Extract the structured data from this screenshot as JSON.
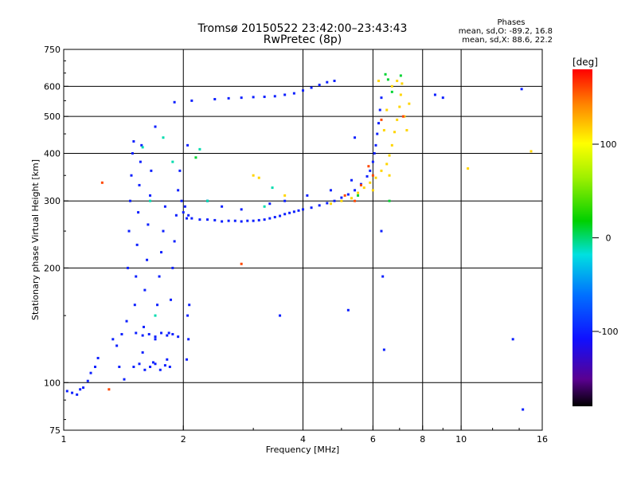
{
  "header": {
    "title": "Tromsø 20150522 23:42:00–23:43:43",
    "subtitle": "RwPretec (8p)",
    "phase_title": "Phases",
    "phase_line_o": "mean, sd,O: -89.2, 16.8",
    "phase_line_x": "mean, sd,X: 88.6, 22.2"
  },
  "chart_data": {
    "type": "scatter",
    "xlabel": "Frequency [MHz]",
    "ylabel": "Stationary phase Virtual Height [km]",
    "x_scale": "log",
    "y_scale": "log",
    "xlim": [
      1,
      16
    ],
    "ylim": [
      75,
      750
    ],
    "x_ticks": [
      1,
      2,
      4,
      6,
      8,
      10,
      16
    ],
    "x_tick_labels": [
      "1",
      "2",
      "4",
      "6",
      "8",
      "10",
      "16"
    ],
    "x_gridlines": [
      2,
      4,
      6,
      8,
      10
    ],
    "y_ticks": [
      75,
      100,
      200,
      300,
      400,
      500,
      600,
      750
    ],
    "y_tick_labels": [
      "75",
      "100",
      "200",
      "300",
      "400",
      "500",
      "600",
      "750"
    ],
    "y_gridlines": [
      100,
      200,
      300,
      400,
      500,
      600
    ],
    "grid": true,
    "colorbar": {
      "label": "[deg]",
      "range": [
        -180,
        180
      ],
      "ticks": [
        100,
        0,
        -100
      ],
      "tick_labels": [
        "100",
        "0",
        "-100"
      ]
    },
    "series": [
      {
        "color_value": -100,
        "points": [
          [
            1.02,
            95
          ],
          [
            1.05,
            94
          ],
          [
            1.08,
            93
          ],
          [
            1.1,
            96
          ],
          [
            1.12,
            97
          ],
          [
            1.15,
            101
          ],
          [
            1.17,
            106
          ],
          [
            1.2,
            110
          ],
          [
            1.22,
            116
          ],
          [
            1.33,
            130
          ],
          [
            1.36,
            125
          ],
          [
            1.38,
            110
          ],
          [
            1.4,
            134
          ],
          [
            1.42,
            102
          ],
          [
            1.44,
            145
          ],
          [
            1.45,
            200
          ],
          [
            1.46,
            250
          ],
          [
            1.47,
            300
          ],
          [
            1.48,
            350
          ],
          [
            1.49,
            400
          ],
          [
            1.5,
            430
          ],
          [
            1.51,
            160
          ],
          [
            1.52,
            190
          ],
          [
            1.53,
            230
          ],
          [
            1.54,
            280
          ],
          [
            1.55,
            330
          ],
          [
            1.56,
            380
          ],
          [
            1.57,
            420
          ],
          [
            1.58,
            120
          ],
          [
            1.59,
            140
          ],
          [
            1.6,
            175
          ],
          [
            1.62,
            210
          ],
          [
            1.63,
            260
          ],
          [
            1.65,
            310
          ],
          [
            1.66,
            360
          ],
          [
            1.68,
            113
          ],
          [
            1.7,
            130
          ],
          [
            1.72,
            160
          ],
          [
            1.74,
            190
          ],
          [
            1.76,
            220
          ],
          [
            1.78,
            250
          ],
          [
            1.8,
            290
          ],
          [
            1.82,
            115
          ],
          [
            1.84,
            135
          ],
          [
            1.86,
            165
          ],
          [
            1.88,
            200
          ],
          [
            1.9,
            235
          ],
          [
            1.92,
            275
          ],
          [
            1.94,
            320
          ],
          [
            1.96,
            360
          ],
          [
            1.98,
            300
          ],
          [
            2.0,
            280
          ],
          [
            2.02,
            290
          ],
          [
            2.04,
            270
          ],
          [
            2.06,
            275
          ],
          [
            1.5,
            110
          ],
          [
            1.55,
            112
          ],
          [
            1.6,
            108
          ],
          [
            1.65,
            110
          ],
          [
            1.7,
            112
          ],
          [
            1.75,
            108
          ],
          [
            1.8,
            111
          ],
          [
            1.85,
            110
          ],
          [
            1.52,
            135
          ],
          [
            1.58,
            133
          ],
          [
            1.64,
            134
          ],
          [
            1.7,
            132
          ],
          [
            1.76,
            135
          ],
          [
            1.82,
            133
          ],
          [
            1.88,
            134
          ],
          [
            1.94,
            132
          ],
          [
            2.04,
            115
          ],
          [
            2.06,
            130
          ],
          [
            2.05,
            150
          ],
          [
            2.07,
            160
          ],
          [
            2.1,
            270
          ],
          [
            2.2,
            268
          ],
          [
            2.3,
            268
          ],
          [
            2.4,
            267
          ],
          [
            2.5,
            265
          ],
          [
            2.6,
            266
          ],
          [
            2.7,
            266
          ],
          [
            2.8,
            265
          ],
          [
            2.9,
            266
          ],
          [
            3.0,
            266
          ],
          [
            3.1,
            267
          ],
          [
            3.2,
            268
          ],
          [
            3.3,
            270
          ],
          [
            3.4,
            272
          ],
          [
            3.5,
            274
          ],
          [
            3.6,
            277
          ],
          [
            3.7,
            279
          ],
          [
            3.8,
            281
          ],
          [
            3.9,
            283
          ],
          [
            4.0,
            285
          ],
          [
            4.2,
            288
          ],
          [
            4.4,
            292
          ],
          [
            4.6,
            296
          ],
          [
            4.8,
            300
          ],
          [
            5.0,
            306
          ],
          [
            5.2,
            312
          ],
          [
            5.4,
            320
          ],
          [
            5.6,
            332
          ],
          [
            5.8,
            348
          ],
          [
            5.9,
            360
          ],
          [
            6.0,
            380
          ],
          [
            6.05,
            400
          ],
          [
            6.1,
            420
          ],
          [
            6.15,
            450
          ],
          [
            6.2,
            480
          ],
          [
            6.25,
            520
          ],
          [
            6.3,
            560
          ],
          [
            2.3,
            300
          ],
          [
            2.5,
            290
          ],
          [
            2.8,
            285
          ],
          [
            3.3,
            295
          ],
          [
            3.6,
            300
          ],
          [
            4.1,
            310
          ],
          [
            4.7,
            320
          ],
          [
            5.3,
            340
          ],
          [
            2.4,
            555
          ],
          [
            2.6,
            558
          ],
          [
            2.8,
            560
          ],
          [
            3.0,
            562
          ],
          [
            3.2,
            563
          ],
          [
            3.4,
            565
          ],
          [
            3.6,
            570
          ],
          [
            3.8,
            575
          ],
          [
            4.0,
            585
          ],
          [
            4.2,
            595
          ],
          [
            4.4,
            605
          ],
          [
            4.6,
            615
          ],
          [
            4.8,
            620
          ],
          [
            1.7,
            470
          ],
          [
            1.9,
            545
          ],
          [
            2.1,
            550
          ],
          [
            2.05,
            420
          ],
          [
            6.3,
            250
          ],
          [
            6.35,
            190
          ],
          [
            6.4,
            122
          ],
          [
            8.6,
            570
          ],
          [
            9.0,
            560
          ],
          [
            13.5,
            130
          ],
          [
            14.3,
            85
          ],
          [
            14.2,
            590
          ],
          [
            3.5,
            150
          ],
          [
            5.2,
            155
          ],
          [
            5.4,
            440
          ]
        ]
      },
      {
        "color_value": 115,
        "points": [
          [
            4.7,
            295
          ],
          [
            5.0,
            300
          ],
          [
            5.3,
            305
          ],
          [
            5.5,
            315
          ],
          [
            5.7,
            325
          ],
          [
            5.9,
            335
          ],
          [
            6.1,
            345
          ],
          [
            6.3,
            360
          ],
          [
            6.5,
            375
          ],
          [
            6.6,
            395
          ],
          [
            6.7,
            420
          ],
          [
            6.8,
            455
          ],
          [
            6.9,
            490
          ],
          [
            7.0,
            530
          ],
          [
            7.05,
            570
          ],
          [
            7.1,
            610
          ],
          [
            6.7,
            600
          ],
          [
            6.5,
            520
          ],
          [
            6.4,
            460
          ],
          [
            6.6,
            350
          ],
          [
            6.9,
            620
          ],
          [
            7.2,
            500
          ],
          [
            7.3,
            460
          ],
          [
            7.4,
            540
          ],
          [
            3.0,
            350
          ],
          [
            3.1,
            345
          ],
          [
            3.6,
            310
          ],
          [
            10.4,
            365
          ],
          [
            15.0,
            405
          ],
          [
            6.2,
            620
          ],
          [
            6.0,
            320
          ]
        ]
      },
      {
        "color_value": 10,
        "points": [
          [
            6.45,
            645
          ],
          [
            6.55,
            625
          ],
          [
            6.7,
            580
          ],
          [
            7.05,
            640
          ],
          [
            6.6,
            300
          ],
          [
            5.5,
            310
          ],
          [
            2.15,
            390
          ]
        ]
      },
      {
        "color_value": 160,
        "points": [
          [
            5.1,
            310
          ],
          [
            5.4,
            300
          ],
          [
            5.6,
            330
          ],
          [
            5.85,
            370
          ],
          [
            6.0,
            350
          ],
          [
            6.3,
            490
          ],
          [
            1.25,
            335
          ],
          [
            2.8,
            205
          ],
          [
            1.3,
            96
          ],
          [
            7.15,
            500
          ]
        ]
      },
      {
        "color_value": -10,
        "points": [
          [
            1.58,
            415
          ],
          [
            1.78,
            440
          ],
          [
            1.65,
            300
          ],
          [
            1.88,
            380
          ],
          [
            1.7,
            150
          ],
          [
            2.2,
            410
          ],
          [
            2.3,
            300
          ],
          [
            3.2,
            290
          ],
          [
            3.35,
            325
          ]
        ]
      }
    ]
  }
}
